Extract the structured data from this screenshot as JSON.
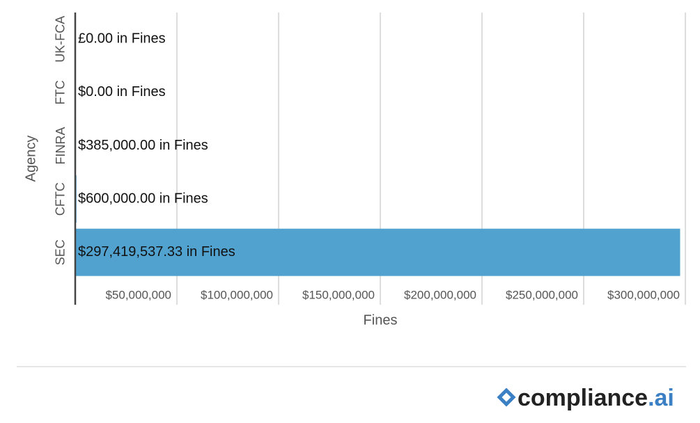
{
  "chart_data": {
    "type": "hbar",
    "x_label": "Fines",
    "y_label": "Agency",
    "categories": [
      "UK-FCA",
      "FTC",
      "FINRA",
      "CFTC",
      "SEC"
    ],
    "values": [
      0,
      0,
      385000,
      600000,
      297419537.33
    ],
    "value_labels": [
      "£0.00 in Fines",
      "$0.00 in Fines",
      "$385,000.00 in Fines",
      "$600,000.00 in Fines",
      "$297,419,537.33 in Fines"
    ],
    "color": "#52a2cf",
    "xlim": [
      0,
      300000000
    ],
    "xticks": [
      {
        "value": 50000000,
        "label": "$50,000,000"
      },
      {
        "value": 100000000,
        "label": "$100,000,000"
      },
      {
        "value": 150000000,
        "label": "$150,000,000"
      },
      {
        "value": 200000000,
        "label": "$200,000,000"
      },
      {
        "value": 250000000,
        "label": "$250,000,000"
      },
      {
        "value": 300000000,
        "label": "$300,000,000"
      }
    ],
    "grid": true
  },
  "brand": {
    "name": "compliance",
    "suffix": ".ai"
  }
}
